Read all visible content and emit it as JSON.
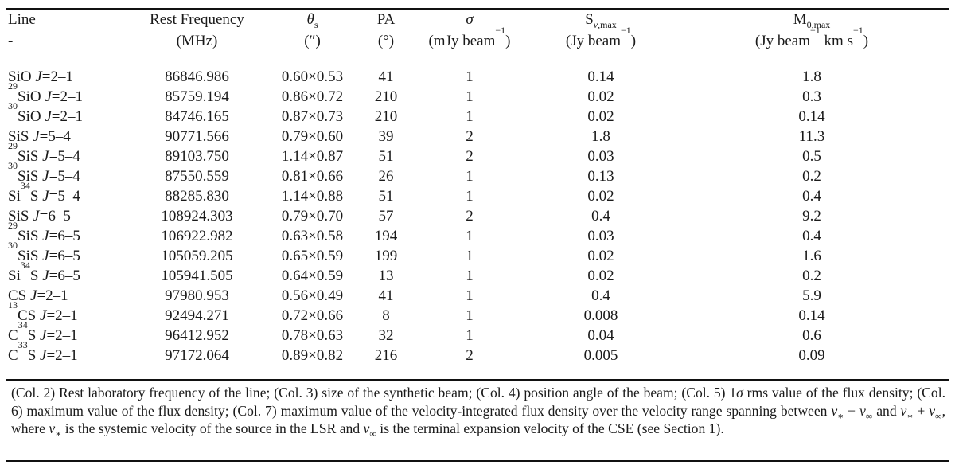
{
  "header": {
    "line": {
      "label": "Line",
      "unit": "-"
    },
    "freq": {
      "label": "Rest Frequency",
      "unit": "(MHz)"
    },
    "theta": {
      "symbol": "θ",
      "sub": "s",
      "unit": "(″)"
    },
    "pa": {
      "label": "PA",
      "unit": "(°)"
    },
    "sigma": {
      "symbol": "σ",
      "unit_pre": "(mJy beam",
      "unit_exp": "−1",
      "unit_post": ")"
    },
    "smax": {
      "base": "S",
      "sub_it": "ν",
      "sub_rest": ",max",
      "unit_pre": "(Jy beam",
      "unit_exp": "−1",
      "unit_post": ")"
    },
    "m0max": {
      "base": "M",
      "sub": "0,max",
      "unit_pre": "(Jy beam",
      "unit_exp1": "−1",
      "unit_mid": " km s",
      "unit_exp2": "−1",
      "unit_post": ")"
    }
  },
  "rows": [
    {
      "iso": "",
      "pre": "SiO",
      "mid": "",
      "post": "",
      "trans": "=2–1",
      "freq": "86846.986",
      "beam": "0.60×0.53",
      "pa": "41",
      "sigma": "1",
      "smax": "0.14",
      "m0max": "1.8"
    },
    {
      "iso": "29",
      "pre": "SiO",
      "mid": "",
      "post": "",
      "trans": "=2–1",
      "freq": "85759.194",
      "beam": "0.86×0.72",
      "pa": "210",
      "sigma": "1",
      "smax": "0.02",
      "m0max": "0.3"
    },
    {
      "iso": "30",
      "pre": "SiO",
      "mid": "",
      "post": "",
      "trans": "=2–1",
      "freq": "84746.165",
      "beam": "0.87×0.73",
      "pa": "210",
      "sigma": "1",
      "smax": "0.02",
      "m0max": "0.14"
    },
    {
      "iso": "",
      "pre": "SiS",
      "mid": "",
      "post": "",
      "trans": "=5–4",
      "freq": "90771.566",
      "beam": "0.79×0.60",
      "pa": "39",
      "sigma": "2",
      "smax": "1.8",
      "m0max": "11.3"
    },
    {
      "iso": "29",
      "pre": "SiS",
      "mid": "",
      "post": "",
      "trans": "=5–4",
      "freq": "89103.750",
      "beam": "1.14×0.87",
      "pa": "51",
      "sigma": "2",
      "smax": "0.03",
      "m0max": "0.5"
    },
    {
      "iso": "30",
      "pre": "SiS",
      "mid": "",
      "post": "",
      "trans": "=5–4",
      "freq": "87550.559",
      "beam": "0.81×0.66",
      "pa": "26",
      "sigma": "1",
      "smax": "0.13",
      "m0max": "0.2"
    },
    {
      "iso": "",
      "pre": "Si",
      "mid": "34",
      "post": "S",
      "trans": "=5–4",
      "freq": "88285.830",
      "beam": "1.14×0.88",
      "pa": "51",
      "sigma": "1",
      "smax": "0.02",
      "m0max": "0.4"
    },
    {
      "iso": "",
      "pre": "SiS",
      "mid": "",
      "post": "",
      "trans": "=6–5",
      "freq": "108924.303",
      "beam": "0.79×0.70",
      "pa": "57",
      "sigma": "2",
      "smax": "0.4",
      "m0max": "9.2"
    },
    {
      "iso": "29",
      "pre": "SiS",
      "mid": "",
      "post": "",
      "trans": "=6–5",
      "freq": "106922.982",
      "beam": "0.63×0.58",
      "pa": "194",
      "sigma": "1",
      "smax": "0.03",
      "m0max": "0.4"
    },
    {
      "iso": "30",
      "pre": "SiS",
      "mid": "",
      "post": "",
      "trans": "=6–5",
      "freq": "105059.205",
      "beam": "0.65×0.59",
      "pa": "199",
      "sigma": "1",
      "smax": "0.02",
      "m0max": "1.6"
    },
    {
      "iso": "",
      "pre": "Si",
      "mid": "34",
      "post": "S",
      "trans": "=6–5",
      "freq": "105941.505",
      "beam": "0.64×0.59",
      "pa": "13",
      "sigma": "1",
      "smax": "0.02",
      "m0max": "0.2"
    },
    {
      "iso": "",
      "pre": "CS",
      "mid": "",
      "post": "",
      "trans": "=2–1",
      "freq": "97980.953",
      "beam": "0.56×0.49",
      "pa": "41",
      "sigma": "1",
      "smax": "0.4",
      "m0max": "5.9"
    },
    {
      "iso": "13",
      "pre": "CS",
      "mid": "",
      "post": "",
      "trans": "=2–1",
      "freq": "92494.271",
      "beam": "0.72×0.66",
      "pa": "8",
      "sigma": "1",
      "smax": "0.008",
      "m0max": "0.14"
    },
    {
      "iso": "",
      "pre": "C",
      "mid": "34",
      "post": "S",
      "trans": "=2–1",
      "freq": "96412.952",
      "beam": "0.78×0.63",
      "pa": "32",
      "sigma": "1",
      "smax": "0.04",
      "m0max": "0.6"
    },
    {
      "iso": "",
      "pre": "C",
      "mid": "33",
      "post": "S",
      "trans": "=2–1",
      "freq": "97172.064",
      "beam": "0.89×0.82",
      "pa": "216",
      "sigma": "2",
      "smax": "0.005",
      "m0max": "0.09"
    }
  ],
  "transition_symbol": "J",
  "note": {
    "p1": "(Col. 2) Rest laboratory frequency of the line; (Col. 3) size of the synthetic beam; (Col. 4) position angle of the beam; (Col. 5) 1",
    "sigma": "σ",
    "p2": " rms value of the flux density; (Col. 6) maximum value of the flux density; (Col. 7) maximum value of the velocity-integrated flux density over the velocity range spanning between ",
    "v": "v",
    "star": "∗",
    "inf": "∞",
    "minus": " − ",
    "and": " and ",
    "plus": " + ",
    "p3": ", where ",
    "p4": " is the systemic velocity of the source in the LSR and ",
    "p5": " is the terminal expansion velocity of the CSE (see Section 1)."
  }
}
